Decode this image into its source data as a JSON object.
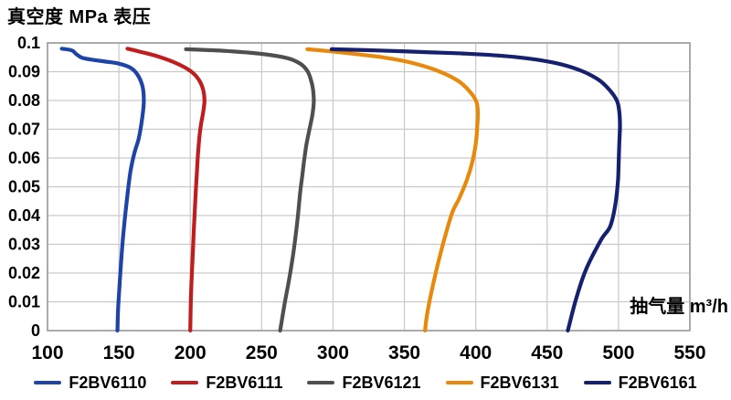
{
  "title": "真空度 MPa 表压",
  "x_unit_label": "抽气量 m³/h",
  "colors": {
    "background": "#ffffff",
    "grid": "#c9c9c9",
    "border": "#a2a2a2",
    "text": "#000000"
  },
  "chart_data": {
    "type": "line",
    "title": "真空度 MPa 表压",
    "xlabel": "抽气量 m³/h",
    "ylabel": "真空度 MPa 表压",
    "xlim": [
      100,
      550
    ],
    "ylim": [
      0,
      0.1
    ],
    "x_ticks": [
      100,
      150,
      200,
      250,
      300,
      350,
      400,
      450,
      500,
      550
    ],
    "x_tick_labels": [
      "100",
      "150",
      "200",
      "250",
      "300",
      "350",
      "400",
      "450",
      "500",
      "550"
    ],
    "y_ticks": [
      0,
      0.01,
      0.02,
      0.03,
      0.04,
      0.05,
      0.06,
      0.07,
      0.08,
      0.09,
      0.1
    ],
    "y_tick_labels": [
      "0",
      "0.01",
      "0.02",
      "0.03",
      "0.04",
      "0.05",
      "0.06",
      "0.07",
      "0.08",
      "0.09",
      "0.1"
    ],
    "grid": true,
    "legend_position": "bottom",
    "series": [
      {
        "name": "F2BV6110",
        "color": "#1e44a8",
        "points": [
          [
            110,
            0.098
          ],
          [
            117,
            0.0974
          ],
          [
            120,
            0.0962
          ],
          [
            124,
            0.0949
          ],
          [
            132,
            0.0941
          ],
          [
            141,
            0.0935
          ],
          [
            150,
            0.0928
          ],
          [
            158,
            0.0914
          ],
          [
            163,
            0.089
          ],
          [
            166.5,
            0.085
          ],
          [
            167.5,
            0.08
          ],
          [
            166.5,
            0.0745
          ],
          [
            164,
            0.067
          ],
          [
            161,
            0.062
          ],
          [
            158,
            0.055
          ],
          [
            155.5,
            0.045
          ],
          [
            153,
            0.033
          ],
          [
            151,
            0.02
          ],
          [
            149.5,
            0.008
          ],
          [
            149,
            0
          ]
        ]
      },
      {
        "name": "F2BV6111",
        "color": "#c01e1e",
        "points": [
          [
            156,
            0.098
          ],
          [
            166,
            0.0968
          ],
          [
            178,
            0.0952
          ],
          [
            190,
            0.093
          ],
          [
            200,
            0.0903
          ],
          [
            206,
            0.0872
          ],
          [
            209,
            0.0838
          ],
          [
            210,
            0.08
          ],
          [
            209,
            0.0758
          ],
          [
            207,
            0.07
          ],
          [
            205.5,
            0.062
          ],
          [
            204.5,
            0.054
          ],
          [
            203.5,
            0.045
          ],
          [
            202.5,
            0.035
          ],
          [
            201.5,
            0.024
          ],
          [
            200.5,
            0.012
          ],
          [
            200,
            0
          ]
        ]
      },
      {
        "name": "F2BV6121",
        "color": "#4f4f4f",
        "points": [
          [
            197,
            0.0978
          ],
          [
            225,
            0.0972
          ],
          [
            250,
            0.0962
          ],
          [
            268,
            0.0947
          ],
          [
            277,
            0.0928
          ],
          [
            282,
            0.0903
          ],
          [
            284.5,
            0.0872
          ],
          [
            286,
            0.0838
          ],
          [
            286.5,
            0.0795
          ],
          [
            285.5,
            0.0748
          ],
          [
            283.5,
            0.07
          ],
          [
            281.5,
            0.065
          ],
          [
            280,
            0.06
          ],
          [
            278.5,
            0.054
          ],
          [
            277,
            0.048
          ],
          [
            275,
            0.038
          ],
          [
            272.5,
            0.028
          ],
          [
            269.5,
            0.0185
          ],
          [
            266,
            0.009
          ],
          [
            263,
            0
          ]
        ]
      },
      {
        "name": "F2BV6131",
        "color": "#e8890b",
        "points": [
          [
            282,
            0.0978
          ],
          [
            300,
            0.097
          ],
          [
            318,
            0.096
          ],
          [
            336,
            0.0949
          ],
          [
            356,
            0.093
          ],
          [
            374,
            0.0902
          ],
          [
            388,
            0.0867
          ],
          [
            396,
            0.083
          ],
          [
            400.5,
            0.0795
          ],
          [
            401.5,
            0.0755
          ],
          [
            401,
            0.0705
          ],
          [
            400,
            0.065
          ],
          [
            397.5,
            0.0585
          ],
          [
            393.5,
            0.052
          ],
          [
            388,
            0.0455
          ],
          [
            383.5,
            0.041
          ],
          [
            377,
            0.03
          ],
          [
            371,
            0.018
          ],
          [
            366,
            0.006
          ],
          [
            364.5,
            0
          ]
        ]
      },
      {
        "name": "F2BV6161",
        "color": "#15206f",
        "points": [
          [
            299,
            0.0978
          ],
          [
            330,
            0.0974
          ],
          [
            365,
            0.0968
          ],
          [
            400,
            0.0961
          ],
          [
            430,
            0.095
          ],
          [
            455,
            0.0931
          ],
          [
            473,
            0.0905
          ],
          [
            486,
            0.0872
          ],
          [
            494,
            0.0835
          ],
          [
            499,
            0.0798
          ],
          [
            500.5,
            0.0762
          ],
          [
            501,
            0.0712
          ],
          [
            500.5,
            0.0645
          ],
          [
            500,
            0.0565
          ],
          [
            499.5,
            0.0512
          ],
          [
            497.5,
            0.043
          ],
          [
            494,
            0.036
          ],
          [
            488,
            0.0317
          ],
          [
            477,
            0.021
          ],
          [
            470,
            0.0105
          ],
          [
            464.5,
            0
          ]
        ]
      }
    ]
  }
}
